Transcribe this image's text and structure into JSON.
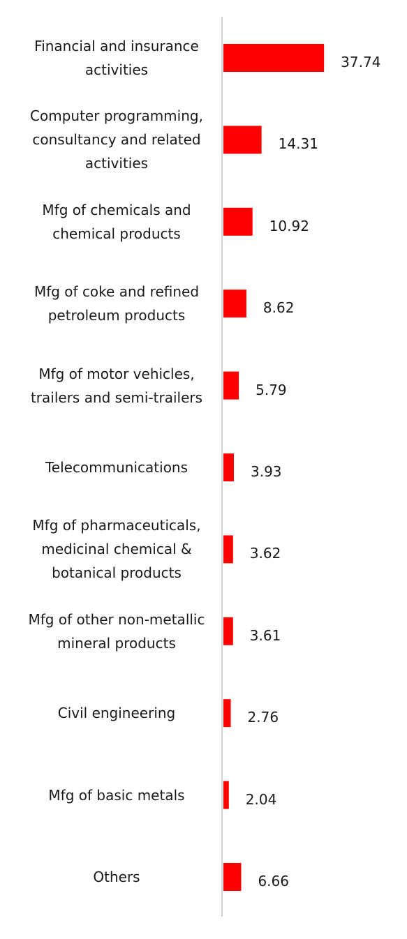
{
  "chart_data": {
    "type": "bar",
    "orientation": "horizontal",
    "categories": [
      "Financial and insurance activities",
      "Computer programming, consultancy and related activities",
      "Mfg of chemicals and chemical products",
      "Mfg of coke and refined petroleum products",
      "Mfg of motor vehicles, trailers and semi-trailers",
      "Telecommunications",
      "Mfg of pharmaceuticals, medicinal chemical & botanical products",
      "Mfg of other non-metallic mineral products",
      "Civil engineering",
      "Mfg of basic metals",
      "Others"
    ],
    "values": [
      37.74,
      14.31,
      10.92,
      8.62,
      5.79,
      3.93,
      3.62,
      3.61,
      2.76,
      2.04,
      6.66
    ],
    "value_labels": [
      "37.74",
      "14.31",
      "10.92",
      "8.62",
      "5.79",
      "3.93",
      "3.62",
      "3.61",
      "2.76",
      "2.04",
      "6.66"
    ],
    "title": "",
    "xlabel": "",
    "ylabel": "",
    "xlim": [
      0,
      40
    ],
    "grid": false,
    "legend": "none",
    "bar_color": "#ff0000",
    "axis_color": "#d0d0d0"
  }
}
